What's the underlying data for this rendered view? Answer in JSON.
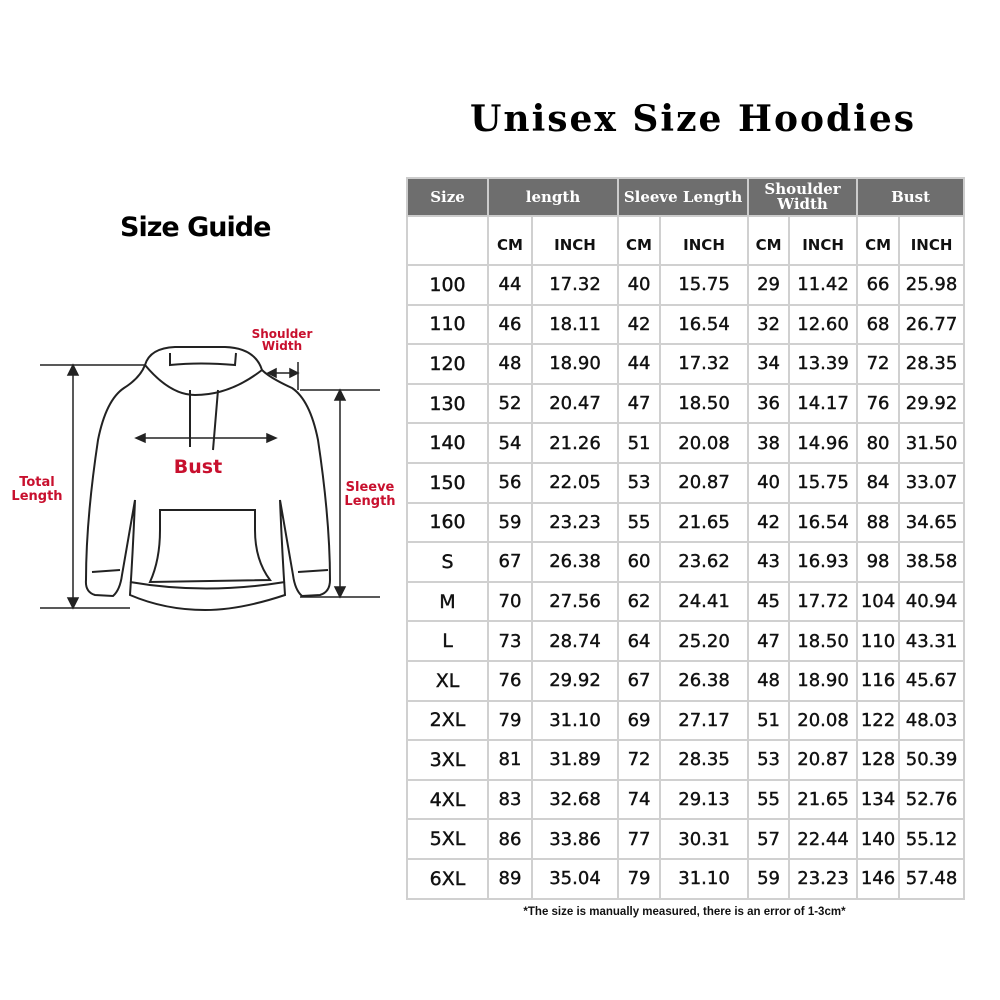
{
  "title": "Unisex Size Hoodies",
  "guide_title": "Size Guide",
  "diagram_labels": {
    "shoulder_width": [
      "Shoulder",
      "Width"
    ],
    "bust": "Bust",
    "total_length": [
      "Total",
      "Length"
    ],
    "sleeve_length": [
      "Sleeve",
      "Length"
    ]
  },
  "table": {
    "headers": [
      "Size",
      "length",
      "Sleeve Length",
      "Shoulder Width",
      "Bust"
    ],
    "units": [
      "CM",
      "INCH",
      "CM",
      "INCH",
      "CM",
      "INCH",
      "CM",
      "INCH"
    ],
    "rows": [
      [
        "100",
        "44",
        "17.32",
        "40",
        "15.75",
        "29",
        "11.42",
        "66",
        "25.98"
      ],
      [
        "110",
        "46",
        "18.11",
        "42",
        "16.54",
        "32",
        "12.60",
        "68",
        "26.77"
      ],
      [
        "120",
        "48",
        "18.90",
        "44",
        "17.32",
        "34",
        "13.39",
        "72",
        "28.35"
      ],
      [
        "130",
        "52",
        "20.47",
        "47",
        "18.50",
        "36",
        "14.17",
        "76",
        "29.92"
      ],
      [
        "140",
        "54",
        "21.26",
        "51",
        "20.08",
        "38",
        "14.96",
        "80",
        "31.50"
      ],
      [
        "150",
        "56",
        "22.05",
        "53",
        "20.87",
        "40",
        "15.75",
        "84",
        "33.07"
      ],
      [
        "160",
        "59",
        "23.23",
        "55",
        "21.65",
        "42",
        "16.54",
        "88",
        "34.65"
      ],
      [
        "S",
        "67",
        "26.38",
        "60",
        "23.62",
        "43",
        "16.93",
        "98",
        "38.58"
      ],
      [
        "M",
        "70",
        "27.56",
        "62",
        "24.41",
        "45",
        "17.72",
        "104",
        "40.94"
      ],
      [
        "L",
        "73",
        "28.74",
        "64",
        "25.20",
        "47",
        "18.50",
        "110",
        "43.31"
      ],
      [
        "XL",
        "76",
        "29.92",
        "67",
        "26.38",
        "48",
        "18.90",
        "116",
        "45.67"
      ],
      [
        "2XL",
        "79",
        "31.10",
        "69",
        "27.17",
        "51",
        "20.08",
        "122",
        "48.03"
      ],
      [
        "3XL",
        "81",
        "31.89",
        "72",
        "28.35",
        "53",
        "20.87",
        "128",
        "50.39"
      ],
      [
        "4XL",
        "83",
        "32.68",
        "74",
        "29.13",
        "55",
        "21.65",
        "134",
        "52.76"
      ],
      [
        "5XL",
        "86",
        "33.86",
        "77",
        "30.31",
        "57",
        "22.44",
        "140",
        "55.12"
      ],
      [
        "6XL",
        "89",
        "35.04",
        "79",
        "31.10",
        "59",
        "23.23",
        "146",
        "57.48"
      ]
    ]
  },
  "note": "*The size is manually measured, there is an error of 1-3cm*",
  "colors": {
    "header_bg": "#6e6e6e",
    "label_red": "#c8102e",
    "grid": "#d0d0d0"
  }
}
